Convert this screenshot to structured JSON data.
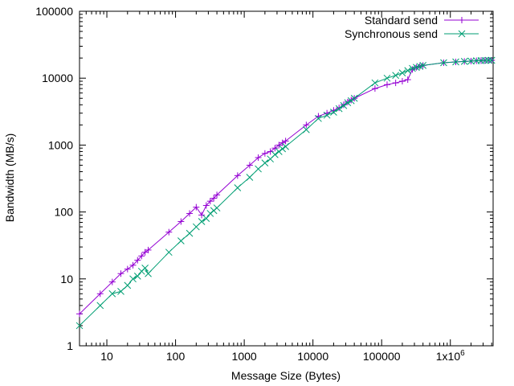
{
  "chart_data": {
    "type": "line",
    "xlabel": "Message Size (Bytes)",
    "ylabel": "Bandwidth (MB/s)",
    "x_scale": "log",
    "y_scale": "log",
    "xlim": [
      4,
      4194304
    ],
    "ylim": [
      1,
      100000
    ],
    "x_ticks": [
      {
        "value": 10,
        "label": "10"
      },
      {
        "value": 100,
        "label": "100"
      },
      {
        "value": 1000,
        "label": "1000"
      },
      {
        "value": 10000,
        "label": "10000"
      },
      {
        "value": 100000,
        "label": "100000"
      },
      {
        "value": 1000000,
        "label": "1x10",
        "sup": "6"
      }
    ],
    "y_ticks": [
      {
        "value": 1,
        "label": "1"
      },
      {
        "value": 10,
        "label": "10"
      },
      {
        "value": 100,
        "label": "100"
      },
      {
        "value": 1000,
        "label": "1000"
      },
      {
        "value": 10000,
        "label": "10000"
      },
      {
        "value": 100000,
        "label": "100000"
      }
    ],
    "grid": false,
    "legend_position": "top-right",
    "series": [
      {
        "name": "Standard send",
        "color": "#9400d3",
        "marker": "plus",
        "points": [
          [
            4,
            3
          ],
          [
            8,
            6
          ],
          [
            12,
            9
          ],
          [
            16,
            12
          ],
          [
            20,
            14
          ],
          [
            24,
            16
          ],
          [
            28,
            19
          ],
          [
            32,
            22
          ],
          [
            36,
            25
          ],
          [
            40,
            27
          ],
          [
            80,
            50
          ],
          [
            120,
            72
          ],
          [
            160,
            95
          ],
          [
            200,
            118
          ],
          [
            240,
            90
          ],
          [
            280,
            125
          ],
          [
            320,
            145
          ],
          [
            360,
            160
          ],
          [
            400,
            180
          ],
          [
            800,
            350
          ],
          [
            1200,
            500
          ],
          [
            1600,
            650
          ],
          [
            2000,
            750
          ],
          [
            2400,
            800
          ],
          [
            2800,
            900
          ],
          [
            3200,
            1000
          ],
          [
            3600,
            1080
          ],
          [
            4000,
            1150
          ],
          [
            8000,
            2000
          ],
          [
            12000,
            2700
          ],
          [
            16000,
            3000
          ],
          [
            20000,
            3300
          ],
          [
            24000,
            3600
          ],
          [
            28000,
            4000
          ],
          [
            32000,
            4400
          ],
          [
            36000,
            4700
          ],
          [
            40000,
            5000
          ],
          [
            80000,
            7000
          ],
          [
            120000,
            8000
          ],
          [
            160000,
            8500
          ],
          [
            200000,
            9000
          ],
          [
            240000,
            9500
          ],
          [
            280000,
            13500
          ],
          [
            320000,
            14500
          ],
          [
            360000,
            15000
          ],
          [
            400000,
            15500
          ],
          [
            800000,
            17000
          ],
          [
            1200000,
            17500
          ],
          [
            1600000,
            17800
          ],
          [
            2000000,
            18000
          ],
          [
            2400000,
            18200
          ],
          [
            2800000,
            18300
          ],
          [
            3200000,
            18400
          ],
          [
            3600000,
            18500
          ],
          [
            4000000,
            18500
          ]
        ]
      },
      {
        "name": "Synchronous send",
        "color": "#009e73",
        "marker": "cross",
        "points": [
          [
            4,
            2
          ],
          [
            8,
            4
          ],
          [
            12,
            6
          ],
          [
            16,
            6.5
          ],
          [
            20,
            8
          ],
          [
            24,
            10
          ],
          [
            28,
            11
          ],
          [
            32,
            13
          ],
          [
            36,
            14.5
          ],
          [
            40,
            12
          ],
          [
            80,
            25
          ],
          [
            120,
            37
          ],
          [
            160,
            48
          ],
          [
            200,
            60
          ],
          [
            240,
            72
          ],
          [
            280,
            80
          ],
          [
            320,
            95
          ],
          [
            360,
            105
          ],
          [
            400,
            115
          ],
          [
            800,
            230
          ],
          [
            1200,
            330
          ],
          [
            1600,
            440
          ],
          [
            2000,
            540
          ],
          [
            2400,
            620
          ],
          [
            2800,
            720
          ],
          [
            3200,
            800
          ],
          [
            3600,
            880
          ],
          [
            4000,
            950
          ],
          [
            8000,
            1700
          ],
          [
            12000,
            2500
          ],
          [
            16000,
            2800
          ],
          [
            20000,
            3100
          ],
          [
            24000,
            3500
          ],
          [
            28000,
            3900
          ],
          [
            32000,
            4300
          ],
          [
            36000,
            4600
          ],
          [
            40000,
            5000
          ],
          [
            80000,
            8500
          ],
          [
            120000,
            10000
          ],
          [
            160000,
            11000
          ],
          [
            200000,
            12000
          ],
          [
            240000,
            13000
          ],
          [
            280000,
            14000
          ],
          [
            320000,
            14500
          ],
          [
            360000,
            15000
          ],
          [
            400000,
            15500
          ],
          [
            800000,
            17000
          ],
          [
            1200000,
            17500
          ],
          [
            1600000,
            17800
          ],
          [
            2000000,
            18000
          ],
          [
            2400000,
            18200
          ],
          [
            2800000,
            18300
          ],
          [
            3200000,
            18400
          ],
          [
            3600000,
            18500
          ],
          [
            4000000,
            18500
          ]
        ]
      }
    ]
  }
}
